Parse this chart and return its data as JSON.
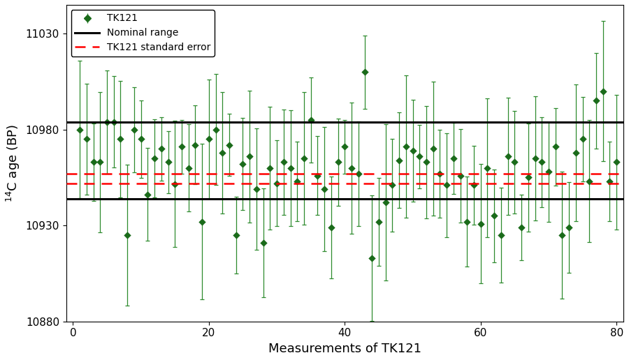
{
  "title": "",
  "xlabel": "Measurements of TK121",
  "ylabel": "$^{14}$C age (BP)",
  "xlim": [
    -1,
    81
  ],
  "ylim": [
    10880,
    11045
  ],
  "yticks": [
    10880,
    10930,
    10980,
    11030
  ],
  "xticks": [
    0,
    20,
    40,
    60,
    80
  ],
  "nominal_upper": 10984,
  "nominal_lower": 10944,
  "std_err_upper": 10957,
  "std_err_lower": 10952,
  "mean_value": 10955,
  "marker_color": "#1a6b1a",
  "errorbar_color": "#2e8b2e",
  "nominal_color": "#000000",
  "stderr_color": "#FF0000",
  "background_color": "#ffffff",
  "n_points": 80,
  "seed": 17,
  "scatter_std": 14,
  "error_base": 28
}
